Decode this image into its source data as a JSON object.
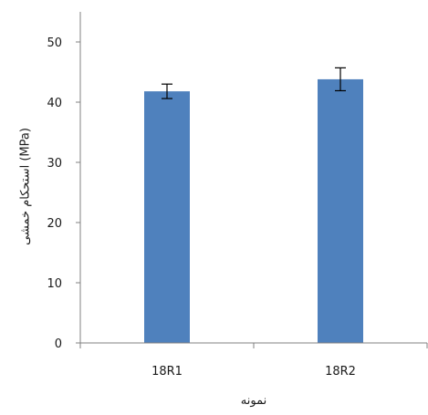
{
  "chart_data": {
    "type": "bar",
    "categories": [
      "18R1",
      "18R2"
    ],
    "series": [
      {
        "values": [
          41.8,
          43.8
        ],
        "error": [
          1.2,
          1.9
        ],
        "color": "#4F81BD"
      }
    ],
    "title": "",
    "xlabel": "نمونه",
    "ylabel": "استحکام خمشی (MPa)",
    "ylim": [
      0,
      55
    ],
    "yticks": [
      0,
      10,
      20,
      30,
      40,
      50
    ],
    "grid": false,
    "legend": "none",
    "axis_color": "#808080",
    "text_color": "#1a1a1a"
  }
}
